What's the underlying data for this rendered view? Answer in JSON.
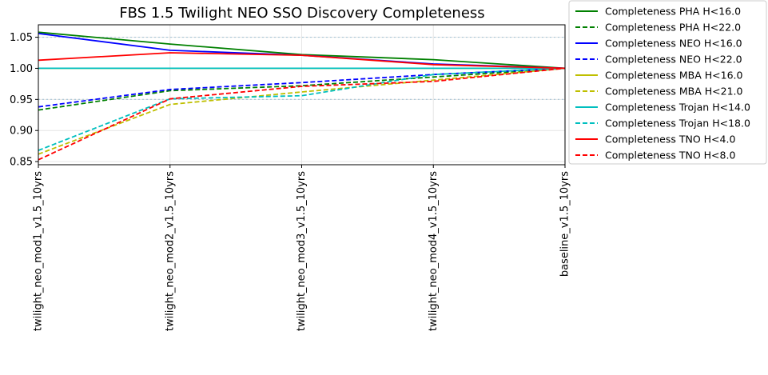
{
  "chart_data": {
    "type": "line",
    "title": "FBS 1.5 Twilight NEO SSO Discovery Completeness",
    "xlabel": "",
    "ylabel": "",
    "categories": [
      "twilight_neo_mod1_v1.5_10yrs",
      "twilight_neo_mod2_v1.5_10yrs",
      "twilight_neo_mod3_v1.5_10yrs",
      "twilight_neo_mod4_v1.5_10yrs",
      "baseline_v1.5_10yrs"
    ],
    "ylim": [
      0.845,
      1.07
    ],
    "yticks": [
      "0.85",
      "0.90",
      "0.95",
      "1.00",
      "1.05"
    ],
    "grid": true,
    "reference_lines": [
      0.95,
      1.05
    ],
    "legend_position": "outside-right",
    "series": [
      {
        "name": "Completeness PHA H<16.0",
        "color": "#008000",
        "dash": "solid",
        "values": [
          1.058,
          1.039,
          1.022,
          1.014,
          1.0
        ]
      },
      {
        "name": "Completeness PHA H<22.0",
        "color": "#008000",
        "dash": "dashed",
        "values": [
          0.933,
          0.964,
          0.972,
          0.986,
          1.0
        ]
      },
      {
        "name": "Completeness NEO H<16.0",
        "color": "#0000ff",
        "dash": "solid",
        "values": [
          1.056,
          1.029,
          1.021,
          1.007,
          1.0
        ]
      },
      {
        "name": "Completeness NEO H<22.0",
        "color": "#0000ff",
        "dash": "dashed",
        "values": [
          0.938,
          0.966,
          0.977,
          0.99,
          1.0
        ]
      },
      {
        "name": "Completeness MBA H<16.0",
        "color": "#bfbf00",
        "dash": "solid",
        "values": [
          1.0,
          1.0,
          1.0,
          1.0,
          1.0
        ]
      },
      {
        "name": "Completeness MBA H<21.0",
        "color": "#bfbf00",
        "dash": "dashed",
        "values": [
          0.862,
          0.942,
          0.962,
          0.981,
          1.0
        ]
      },
      {
        "name": "Completeness Trojan H<14.0",
        "color": "#00bfbf",
        "dash": "solid",
        "values": [
          1.0,
          1.0,
          1.0,
          1.0,
          1.0
        ]
      },
      {
        "name": "Completeness Trojan H<18.0",
        "color": "#00bfbf",
        "dash": "dashed",
        "values": [
          0.868,
          0.951,
          0.956,
          0.99,
          1.0
        ]
      },
      {
        "name": "Completeness TNO H<4.0",
        "color": "#ff0000",
        "dash": "solid",
        "values": [
          1.013,
          1.025,
          1.021,
          1.006,
          1.0
        ]
      },
      {
        "name": "Completeness TNO H<8.0",
        "color": "#ff0000",
        "dash": "dashed",
        "values": [
          0.853,
          0.951,
          0.971,
          0.979,
          1.0
        ]
      }
    ]
  }
}
